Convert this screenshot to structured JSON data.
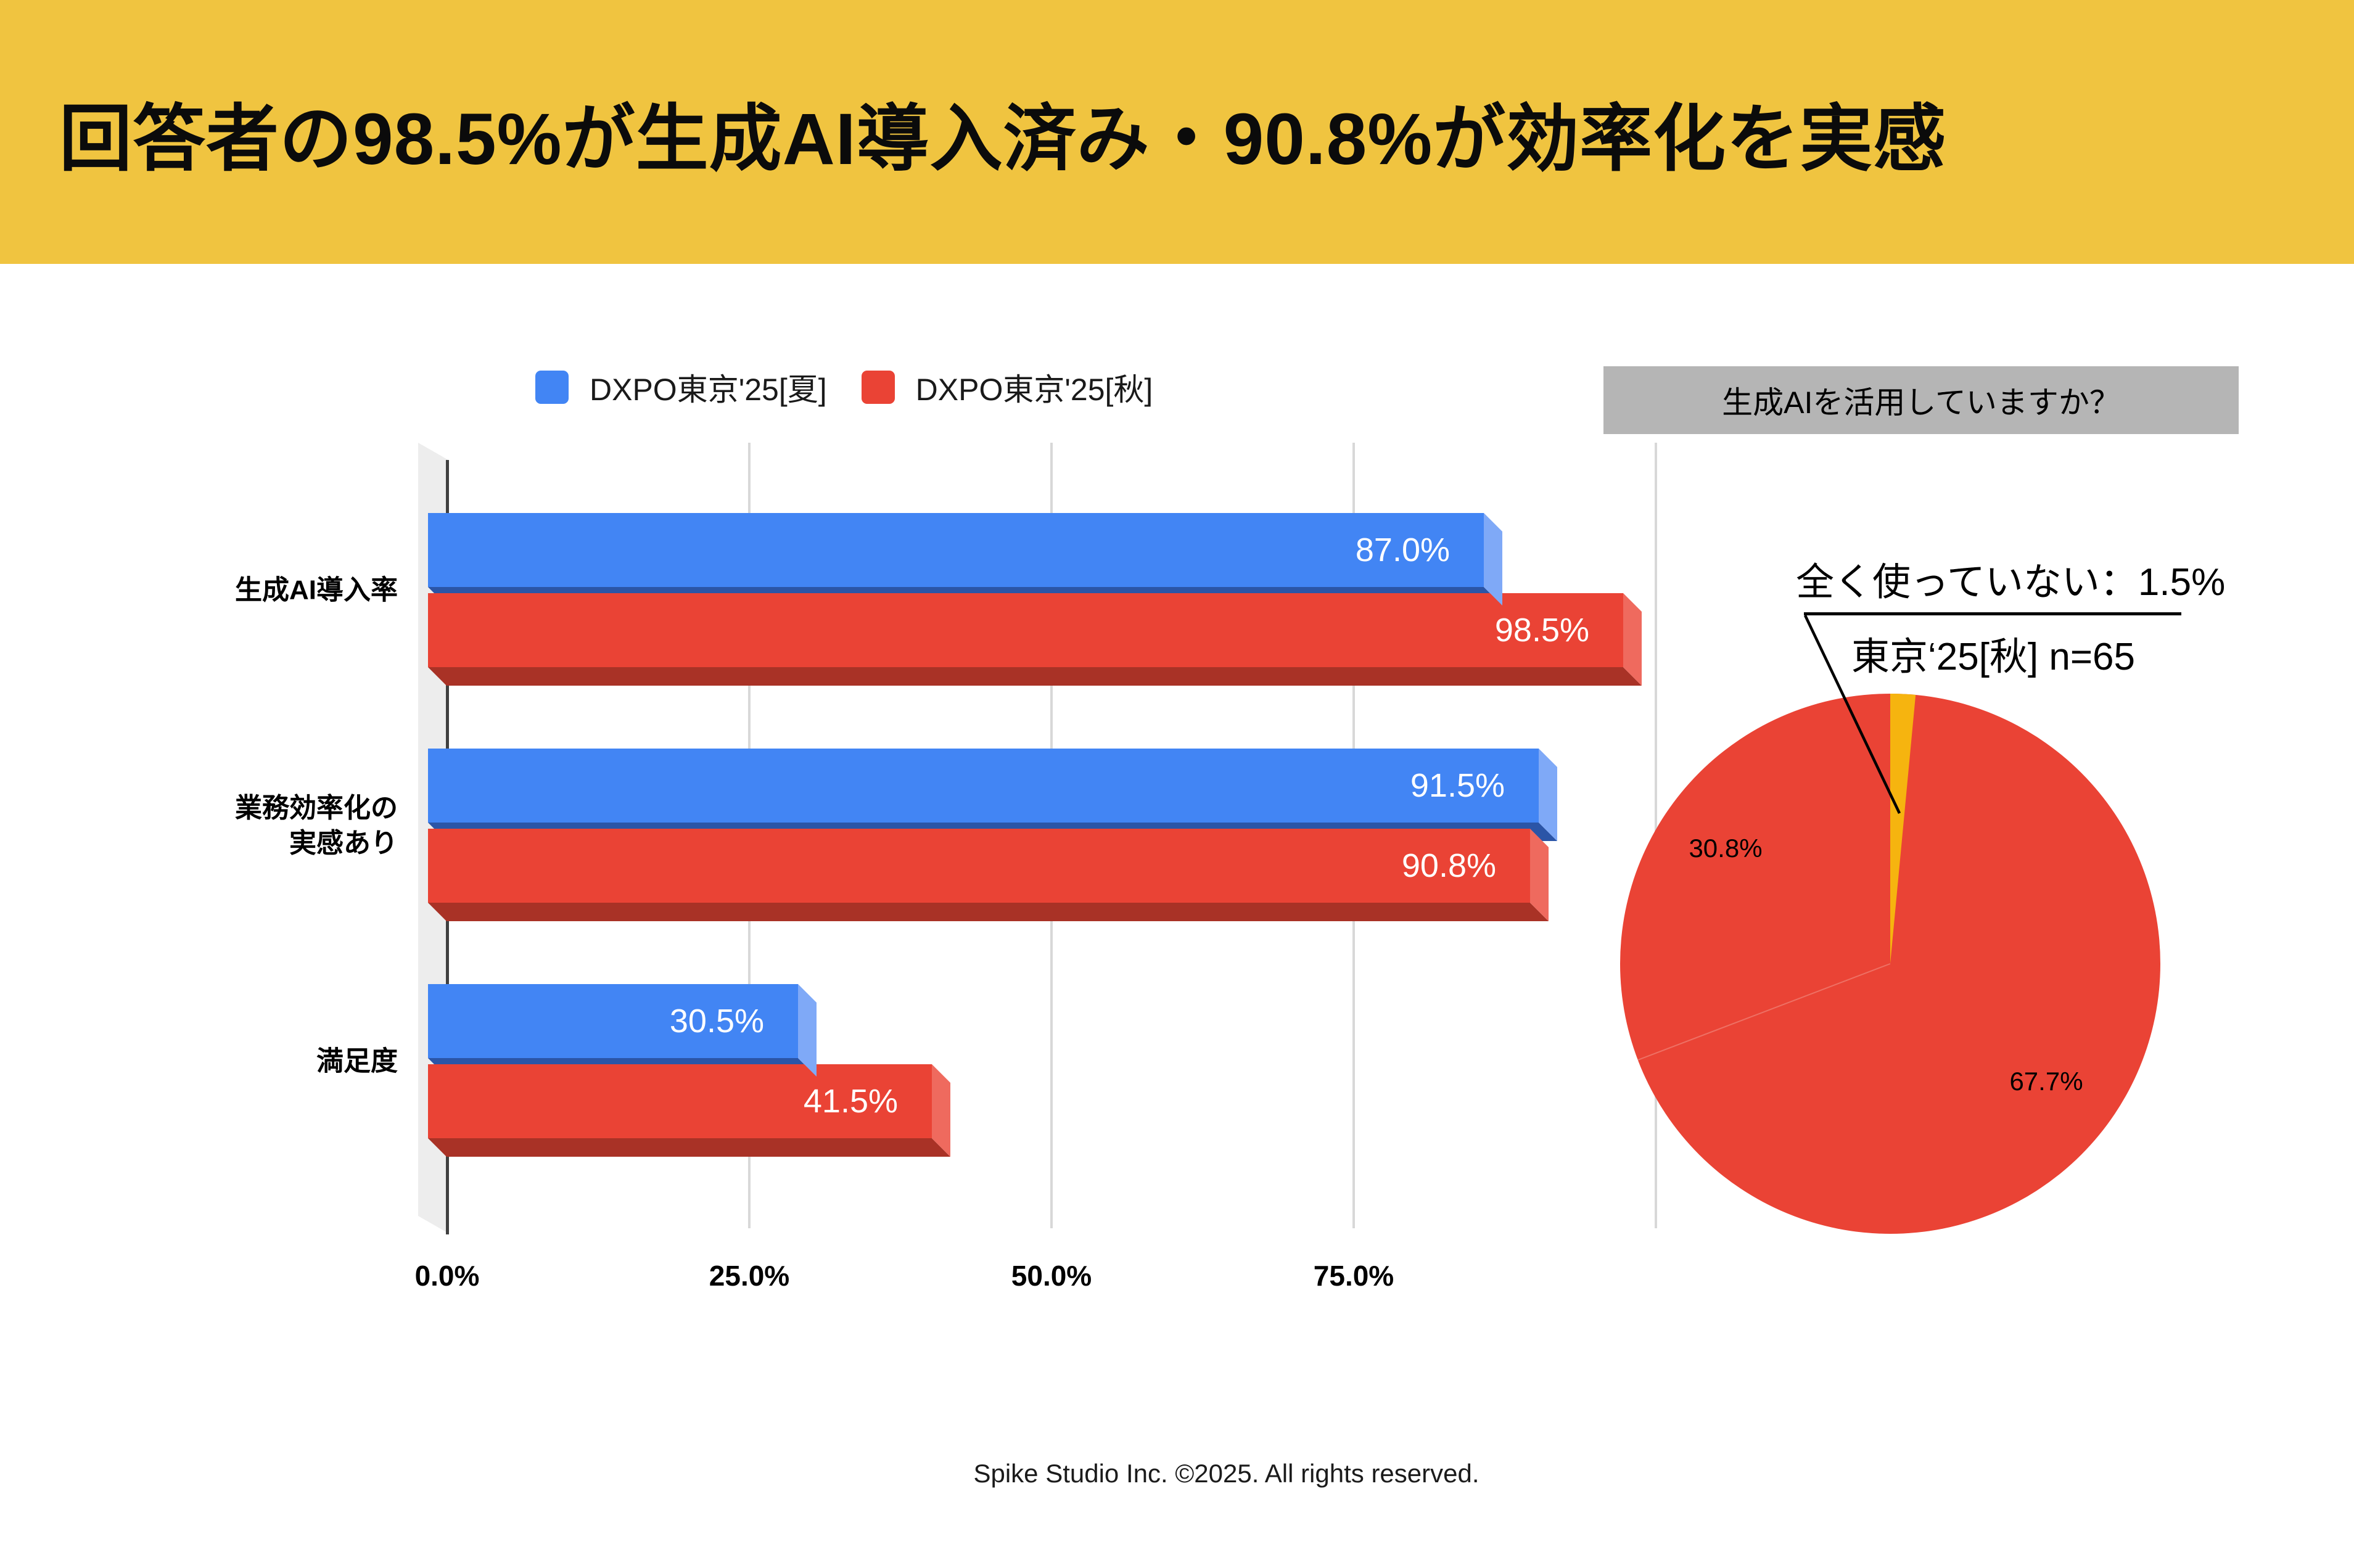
{
  "header": {
    "title": "回答者の98.5%が生成AI導入済み・90.8%が効率化を実感",
    "background_color": "#F0C440"
  },
  "chart_data": [
    {
      "type": "bar",
      "orientation": "horizontal",
      "categories": [
        "生成AI導入率",
        "業務効率化の\n実感あり",
        "満足度"
      ],
      "series": [
        {
          "name": "DXPO東京'25[夏]",
          "color": "#4285F4",
          "values": [
            87.0,
            91.5,
            30.5
          ]
        },
        {
          "name": "DXPO東京'25[秋]",
          "color": "#EA4335",
          "values": [
            98.5,
            90.8,
            41.5
          ]
        }
      ],
      "x_ticks": [
        "0.0%",
        "25.0%",
        "50.0%",
        "75.0%"
      ],
      "xlim": [
        0,
        100
      ],
      "grid": true,
      "legend_position": "top",
      "value_label_format": "{value}%"
    },
    {
      "type": "pie",
      "title": "生成AIを活用していますか？",
      "slices": [
        {
          "value": 1.5,
          "color": "#F6B40F"
        },
        {
          "value": 67.7,
          "color": "#EA4335",
          "label": "67.7%"
        },
        {
          "value": 30.8,
          "color": "#EA4335",
          "label": "30.8%"
        }
      ],
      "start_angle_deg": 0,
      "annotation": {
        "line1": "全く使っていない：1.5%",
        "line2": "東京‘25[秋] n=65"
      }
    }
  ],
  "footer": {
    "text": "Spike Studio Inc. ©2025. All rights reserved."
  }
}
